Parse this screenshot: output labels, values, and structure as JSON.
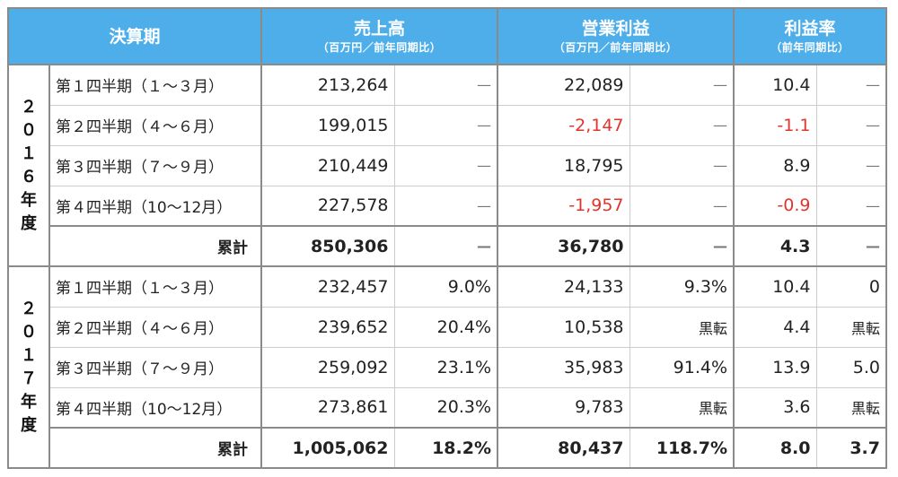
{
  "header": {
    "period": "決算期",
    "sales": "売上高",
    "sales_sub": "（百万円／前年同期比）",
    "op_profit": "営業利益",
    "op_profit_sub": "（百万円／前年同期比）",
    "margin": "利益率",
    "margin_sub": "（前年同期比）"
  },
  "years": [
    {
      "label_chars": [
        "２",
        "０",
        "１",
        "６",
        "年",
        "度"
      ],
      "rows": [
        {
          "quarter": "第１四半期（１～３月）",
          "sales": "213,264",
          "sales_yoy": "—",
          "profit": "22,089",
          "profit_yoy": "—",
          "margin": "10.4",
          "margin_yoy": "—",
          "profit_neg": false
        },
        {
          "quarter": "第２四半期（４～６月）",
          "sales": "199,015",
          "sales_yoy": "—",
          "profit": "-2,147",
          "profit_yoy": "—",
          "margin": "-1.1",
          "margin_yoy": "—",
          "profit_neg": true
        },
        {
          "quarter": "第３四半期（７～９月）",
          "sales": "210,449",
          "sales_yoy": "—",
          "profit": "18,795",
          "profit_yoy": "—",
          "margin": "8.9",
          "margin_yoy": "—",
          "profit_neg": false
        },
        {
          "quarter": "第４四半期（10～12月）",
          "sales": "227,578",
          "sales_yoy": "—",
          "profit": "-1,957",
          "profit_yoy": "—",
          "margin": "-0.9",
          "margin_yoy": "—",
          "profit_neg": true
        }
      ],
      "total": {
        "label": "累計",
        "sales": "850,306",
        "sales_yoy": "—",
        "profit": "36,780",
        "profit_yoy": "—",
        "margin": "4.3",
        "margin_yoy": "—"
      }
    },
    {
      "label_chars": [
        "２",
        "０",
        "１",
        "７",
        "年",
        "度"
      ],
      "rows": [
        {
          "quarter": "第１四半期（１～３月）",
          "sales": "232,457",
          "sales_yoy": "9.0%",
          "profit": "24,133",
          "profit_yoy": "9.3%",
          "margin": "10.4",
          "margin_yoy": "0",
          "profit_neg": false
        },
        {
          "quarter": "第２四半期（４～６月）",
          "sales": "239,652",
          "sales_yoy": "20.4%",
          "profit": "10,538",
          "profit_yoy": "黒転",
          "margin": "4.4",
          "margin_yoy": "黒転",
          "profit_neg": false
        },
        {
          "quarter": "第３四半期（７～９月）",
          "sales": "259,092",
          "sales_yoy": "23.1%",
          "profit": "35,983",
          "profit_yoy": "91.4%",
          "margin": "13.9",
          "margin_yoy": "5.0",
          "profit_neg": false
        },
        {
          "quarter": "第４四半期（10～12月）",
          "sales": "273,861",
          "sales_yoy": "20.3%",
          "profit": "9,783",
          "profit_yoy": "黒転",
          "margin": "3.6",
          "margin_yoy": "黒転",
          "profit_neg": false
        }
      ],
      "total": {
        "label": "累計",
        "sales": "1,005,062",
        "sales_yoy": "18.2%",
        "profit": "80,437",
        "profit_yoy": "118.7%",
        "margin": "8.0",
        "margin_yoy": "3.7"
      }
    }
  ],
  "colors": {
    "header_bg": "#4eaeea",
    "negative": "#e0352c"
  }
}
